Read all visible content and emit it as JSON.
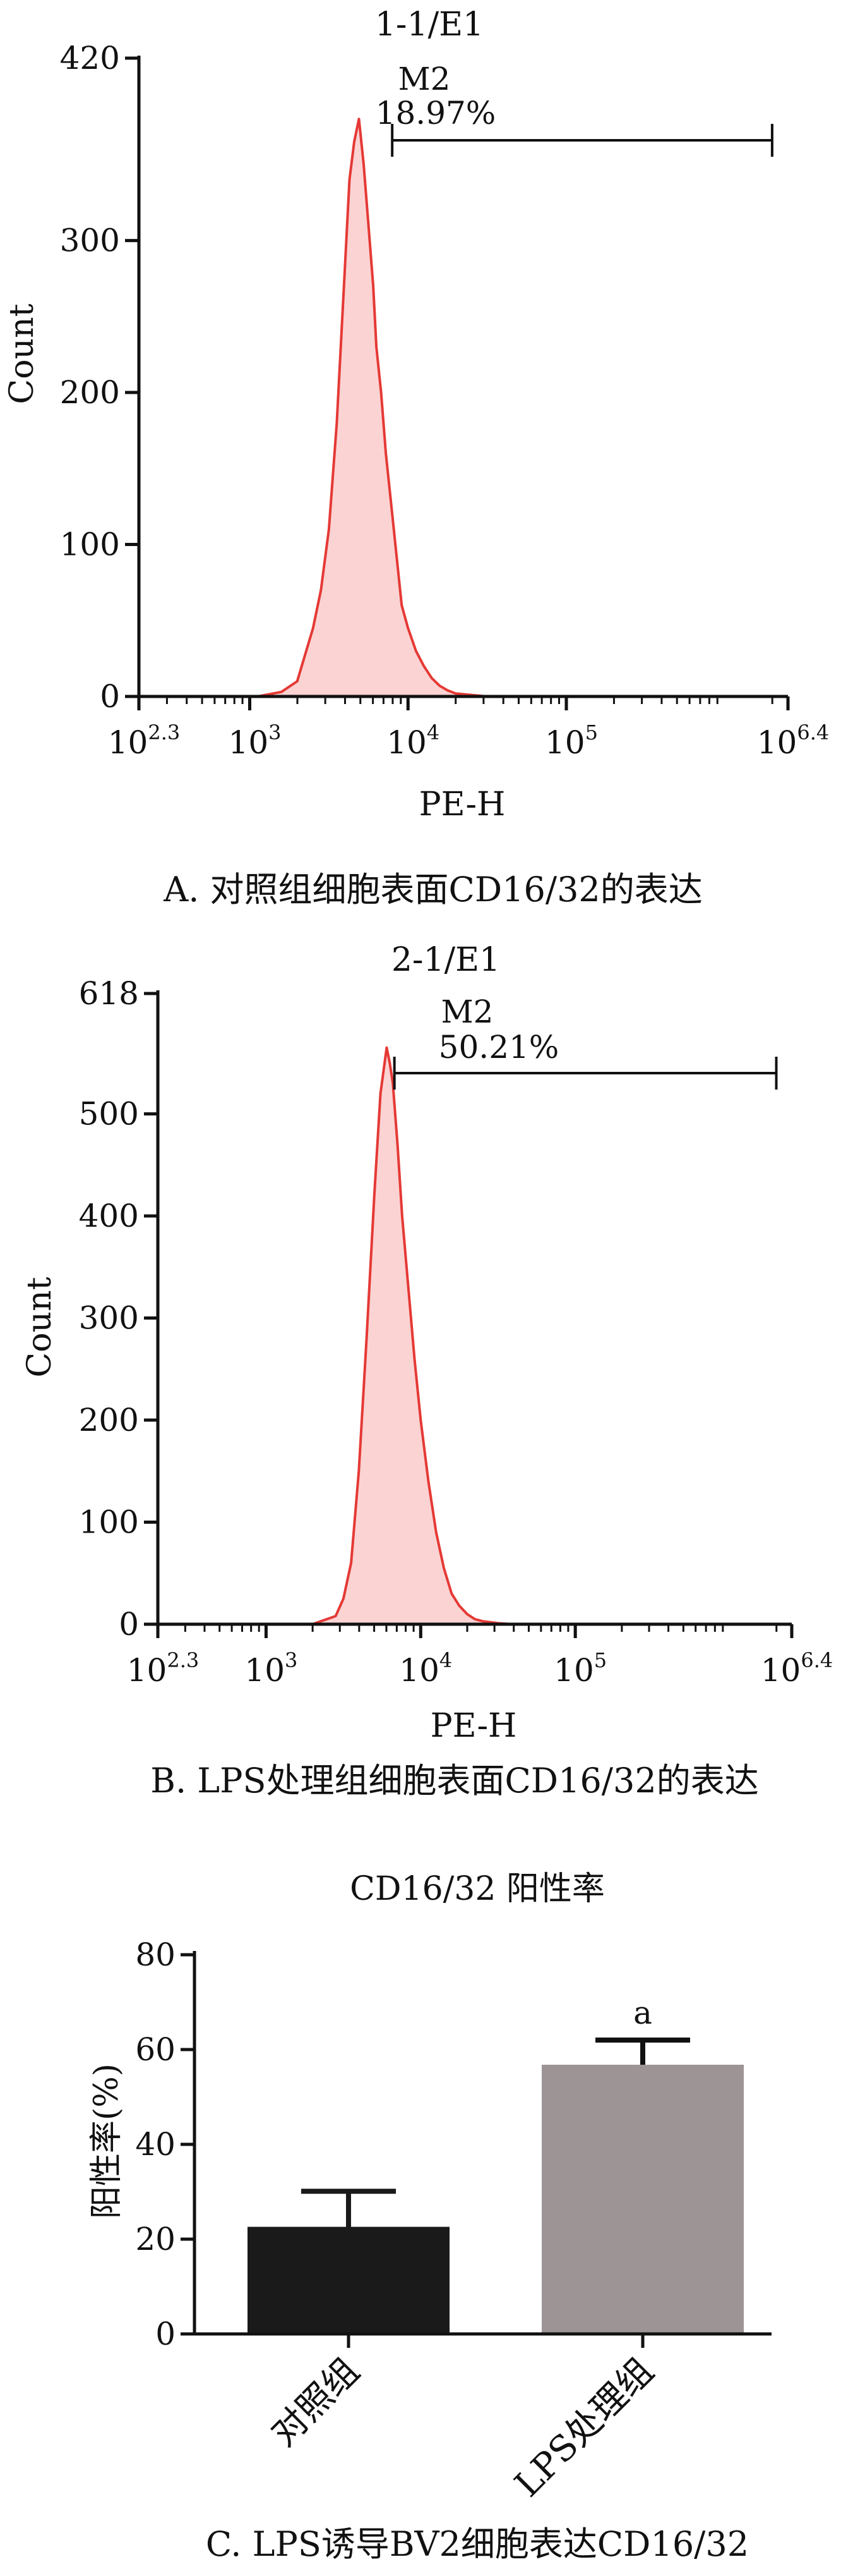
{
  "panels": {
    "a": {
      "title": "1-1/E1",
      "ylabel": "Count",
      "xlabel": "PE-H",
      "caption": "A. 对照组细胞表面CD16/32的表达",
      "gate_label": "M2",
      "gate_percent": "18.97%",
      "xticks": [
        {
          "base": "10",
          "exp": "2.3",
          "pos": 2.3
        },
        {
          "base": "10",
          "exp": "3",
          "pos": 3
        },
        {
          "base": "10",
          "exp": "4",
          "pos": 4
        },
        {
          "base": "10",
          "exp": "5",
          "pos": 5
        },
        {
          "base": "10",
          "exp": "6.4",
          "pos": 6.4
        }
      ],
      "yticks": [
        "0",
        "100",
        "200",
        "300",
        "420"
      ]
    },
    "b": {
      "title": "2-1/E1",
      "ylabel": "Count",
      "xlabel": "PE-H",
      "caption": "B. LPS处理组细胞表面CD16/32的表达",
      "gate_label": "M2",
      "gate_percent": "50.21%",
      "xticks": [
        {
          "base": "10",
          "exp": "2.3",
          "pos": 2.3
        },
        {
          "base": "10",
          "exp": "3",
          "pos": 3
        },
        {
          "base": "10",
          "exp": "4",
          "pos": 4
        },
        {
          "base": "10",
          "exp": "5",
          "pos": 5
        },
        {
          "base": "10",
          "exp": "6.4",
          "pos": 6.4
        }
      ],
      "yticks": [
        "0",
        "100",
        "200",
        "300",
        "400",
        "500",
        "618"
      ]
    },
    "c": {
      "title": "CD16/32 阳性率",
      "ylabel": "阳性率(%)",
      "caption": "C. LPS诱导BV2细胞表达CD16/32",
      "sig_label": "a",
      "yticks": [
        "0",
        "20",
        "40",
        "60",
        "80"
      ]
    }
  },
  "colors": {
    "histogram_line": "#e53935",
    "histogram_fill": "#fbd3d3",
    "bar_control": "#1a1a1a",
    "bar_lps": "#9c9495"
  },
  "chart_data": [
    {
      "type": "area",
      "title": "1-1/E1",
      "xlabel": "PE-H",
      "ylabel": "Count",
      "x_scale": "log10",
      "xlim_log10": [
        2.3,
        6.4
      ],
      "ylim": [
        0,
        420
      ],
      "gate": {
        "name": "M2",
        "start_log10": 3.9,
        "end_log10": 6.3,
        "percent": 18.97
      },
      "x_log10": [
        3.05,
        3.2,
        3.3,
        3.4,
        3.45,
        3.5,
        3.55,
        3.6,
        3.63,
        3.66,
        3.69,
        3.72,
        3.75,
        3.78,
        3.8,
        3.83,
        3.86,
        3.9,
        3.93,
        3.96,
        4.0,
        4.05,
        4.1,
        4.15,
        4.2,
        4.25,
        4.3,
        4.4,
        4.5
      ],
      "y": [
        0,
        3,
        10,
        45,
        70,
        110,
        180,
        280,
        340,
        365,
        380,
        350,
        310,
        270,
        230,
        200,
        160,
        120,
        90,
        60,
        45,
        30,
        20,
        12,
        7,
        4,
        2,
        1,
        0
      ]
    },
    {
      "type": "area",
      "title": "2-1/E1",
      "xlabel": "PE-H",
      "ylabel": "Count",
      "x_scale": "log10",
      "xlim_log10": [
        2.3,
        6.4
      ],
      "ylim": [
        0,
        618
      ],
      "gate": {
        "name": "M2",
        "start_log10": 3.83,
        "end_log10": 6.3,
        "percent": 50.21
      },
      "x_log10": [
        3.3,
        3.45,
        3.5,
        3.55,
        3.6,
        3.65,
        3.7,
        3.74,
        3.78,
        3.8,
        3.82,
        3.85,
        3.88,
        3.92,
        3.96,
        4.0,
        4.05,
        4.1,
        4.15,
        4.2,
        4.25,
        4.3,
        4.35,
        4.4,
        4.5,
        4.6
      ],
      "y": [
        0,
        8,
        25,
        60,
        150,
        280,
        420,
        520,
        565,
        550,
        530,
        470,
        400,
        330,
        260,
        200,
        140,
        90,
        55,
        30,
        18,
        10,
        5,
        3,
        1,
        0
      ]
    },
    {
      "type": "bar",
      "title": "CD16/32 阳性率",
      "ylabel": "阳性率(%)",
      "categories": [
        "对照组",
        "LPS处理组"
      ],
      "values": [
        22.6,
        56.8
      ],
      "errors": [
        7.5,
        5.2
      ],
      "ylim": [
        0,
        80
      ]
    }
  ]
}
